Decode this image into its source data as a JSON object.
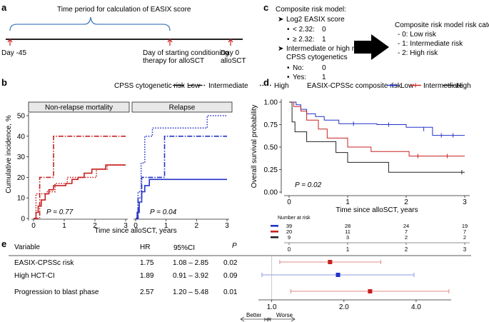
{
  "panel_labels": {
    "a": "a",
    "b": "b",
    "c": "c",
    "d": "d",
    "e": "e"
  },
  "timeline": {
    "brace_label": "Time period for calculation of EASIX score",
    "events": [
      {
        "label": "Day -45"
      },
      {
        "label": "Day of starting conditioning\ntherapy for alloSCT"
      },
      {
        "label": "Day 0\nalloSCT"
      }
    ]
  },
  "risk_model": {
    "title": "Composite risk model:",
    "easix": {
      "label": "Log2 EASIX score",
      "items": [
        {
          "cond": "< 2.32:",
          "score": "0"
        },
        {
          "cond": "≥ 2.32:",
          "score": "1"
        }
      ]
    },
    "cyto": {
      "label": "Intermediate or high risk\nCPSS cytogenetics",
      "items": [
        {
          "cond": "No:",
          "score": "0"
        },
        {
          "cond": "Yes:",
          "score": "1"
        }
      ]
    },
    "category_title": "Composite risk model risk category:",
    "categories": [
      "- 0: Low risk",
      "- 1: Intermediate risk",
      "- 2: High risk"
    ]
  },
  "colors": {
    "low": "#2233c8",
    "intermediate": "#c82020",
    "high": "#222222",
    "ci_low": "#8898e0",
    "ci_red": "#e08a8a"
  },
  "chart_data": [
    {
      "id": "b",
      "type": "line",
      "step": true,
      "title": "CPSS cytogenetic risk",
      "legend": [
        "Low",
        "Intermediate",
        "High"
      ],
      "ylabel": "Cumulative incidence, %",
      "xlabel": "Time since alloSCT, years",
      "ylim": [
        0,
        50
      ],
      "yticks": [
        0,
        10,
        20,
        30,
        40,
        50
      ],
      "xlim": [
        0,
        3
      ],
      "xticks": [
        0,
        1,
        2,
        3
      ],
      "panels": [
        {
          "title": "Non-relapse mortality",
          "annotation": "P = 0.77",
          "series": [
            {
              "name": "Low",
              "color": "intermediate",
              "dash": "solid",
              "x": [
                0,
                0.08,
                0.15,
                0.25,
                0.38,
                0.5,
                0.65,
                1.05,
                1.25,
                1.45,
                1.65,
                1.9,
                2.35,
                3.0
              ],
              "y": [
                0,
                3,
                6,
                9,
                12,
                14,
                16,
                17,
                19,
                20,
                22,
                24,
                26,
                26
              ]
            },
            {
              "name": "Intermediate",
              "color": "intermediate",
              "dash": "dashdot",
              "x": [
                0,
                0.2,
                0.65,
                3.0
              ],
              "y": [
                0,
                20,
                40,
                40
              ]
            },
            {
              "name": "High",
              "color": "intermediate",
              "dash": "dotted",
              "x": [
                0,
                0.08,
                0.45,
                0.7,
                1.1,
                2.05,
                2.4,
                3.0
              ],
              "y": [
                0,
                12,
                13,
                17,
                20,
                24,
                26,
                26
              ]
            }
          ]
        },
        {
          "title": "Relapse",
          "annotation": "P = 0.04",
          "series": [
            {
              "name": "Low",
              "color": "low",
              "dash": "solid",
              "x": [
                0,
                0.05,
                0.12,
                0.2,
                0.3,
                0.45,
                3.0
              ],
              "y": [
                0,
                3,
                8,
                13,
                16,
                19,
                19
              ]
            },
            {
              "name": "Intermediate",
              "color": "low",
              "dash": "dashdot",
              "x": [
                0,
                0.08,
                0.2,
                0.95,
                3.0
              ],
              "y": [
                0,
                10,
                20,
                40,
                40
              ]
            },
            {
              "name": "High",
              "color": "low",
              "dash": "dotted",
              "x": [
                0,
                0.08,
                0.18,
                0.3,
                0.55,
                2.35,
                3.0
              ],
              "y": [
                0,
                13,
                27,
                40,
                44,
                50,
                50
              ]
            }
          ]
        }
      ]
    },
    {
      "id": "d",
      "type": "line",
      "step": true,
      "title": "EASIX-CPSSc composite risk",
      "legend": [
        "Low",
        "Intermediate",
        "High"
      ],
      "ylabel": "Overall survival probability",
      "xlabel": "Time since alloSCT, years",
      "ylim": [
        0,
        1
      ],
      "yticks": [
        0.0,
        0.25,
        0.5,
        0.75,
        1.0
      ],
      "ytick_labels": [
        "0.00",
        "0.25",
        "0.50",
        "0.75",
        "1.00"
      ],
      "xlim": [
        0,
        3
      ],
      "xticks": [
        0,
        1,
        2,
        3
      ],
      "annotation": "P = 0.02",
      "series": [
        {
          "name": "Low",
          "color": "low",
          "x": [
            0,
            0.12,
            0.2,
            0.3,
            0.45,
            0.6,
            0.85,
            1.5,
            2.0,
            2.45,
            3.0
          ],
          "y": [
            1.0,
            0.97,
            0.92,
            0.87,
            0.84,
            0.8,
            0.76,
            0.75,
            0.72,
            0.63,
            0.63
          ],
          "censors": [
            [
              1.1,
              0.76
            ],
            [
              1.7,
              0.75
            ],
            [
              2.3,
              0.7
            ],
            [
              2.6,
              0.63
            ],
            [
              2.8,
              0.63
            ]
          ]
        },
        {
          "name": "Intermediate",
          "color": "intermediate",
          "x": [
            0,
            0.08,
            0.2,
            0.3,
            0.5,
            0.65,
            1.0,
            1.4,
            1.9,
            2.05,
            3.0
          ],
          "y": [
            1.0,
            0.95,
            0.9,
            0.8,
            0.7,
            0.6,
            0.5,
            0.45,
            0.45,
            0.4,
            0.4
          ],
          "censors": [
            [
              2.2,
              0.4
            ],
            [
              2.7,
              0.4
            ]
          ]
        },
        {
          "name": "High",
          "color": "high",
          "x": [
            0,
            0.05,
            0.1,
            0.3,
            0.8,
            1.0,
            1.7,
            3.0
          ],
          "y": [
            1.0,
            0.78,
            0.67,
            0.56,
            0.44,
            0.33,
            0.22,
            0.22
          ],
          "censors": [
            [
              2.95,
              0.22
            ]
          ]
        }
      ],
      "risk_table": {
        "title": "Number at risk",
        "times": [
          0,
          1,
          2,
          3
        ],
        "rows": [
          {
            "name": "Low",
            "color": "low",
            "counts": [
              "39",
              "28",
              "24",
              "19"
            ]
          },
          {
            "name": "Intermediate",
            "color": "intermediate",
            "counts": [
              "20",
              "11",
              "7",
              "7"
            ]
          },
          {
            "name": "High",
            "color": "high",
            "counts": [
              "9",
              "3",
              "2",
              "2"
            ]
          }
        ]
      }
    },
    {
      "id": "e",
      "type": "forest",
      "headers": {
        "variable": "Variable",
        "hr": "HR",
        "ci": "95%CI",
        "p": "P"
      },
      "rows": [
        {
          "variable": "EASIX-CPSSc risk",
          "hr": "1.75",
          "ci": "1.08 – 2.85",
          "p": "0.02",
          "est": 1.75,
          "lo": 1.08,
          "hi": 2.85,
          "color": "intermediate"
        },
        {
          "variable": "High HCT-CI",
          "hr": "1.89",
          "ci": "0.91 – 3.92",
          "p": "0.09",
          "est": 1.89,
          "lo": 0.91,
          "hi": 3.92,
          "color": "low"
        },
        {
          "variable": "Progression to blast phase",
          "hr": "2.57",
          "ci": "1.20 – 5.48",
          "p": "0.01",
          "est": 2.57,
          "lo": 1.2,
          "hi": 5.48,
          "color": "intermediate"
        }
      ],
      "scale": "log2",
      "xticks": [
        1.0,
        2.0,
        4.0
      ],
      "xtick_labels": [
        "1.0",
        "2.0",
        "4.0"
      ],
      "xlim": [
        0.88,
        5.6
      ],
      "reference": 1.0,
      "axis_labels": {
        "better": "Better",
        "hr": "HR",
        "worse": "Worse"
      }
    }
  ]
}
